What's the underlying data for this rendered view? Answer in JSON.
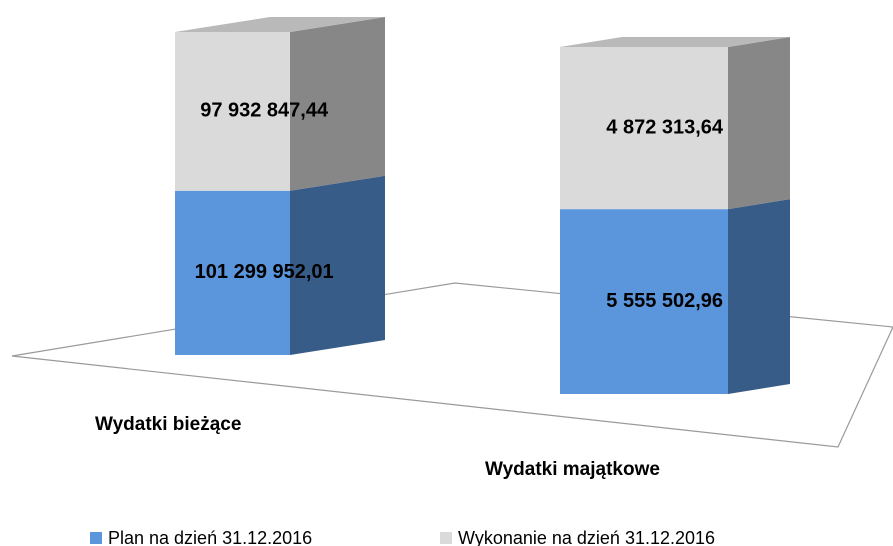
{
  "chart_data": {
    "type": "bar",
    "stacked": "percent",
    "categories": [
      "Wydatki bieżące",
      "Wydatki majątkowe"
    ],
    "series": [
      {
        "name": "Plan na dzień 31.12.2016",
        "color": "#5b95dc",
        "values": [
          101299952.01,
          5555502.96
        ],
        "value_labels": [
          "101 299 952,01",
          "5 555 502,96"
        ]
      },
      {
        "name": "Wykonanie na dzień 31.12.2016",
        "color": "#dadada",
        "values": [
          97932847.44,
          4872313.64
        ],
        "value_labels": [
          "97 932 847,44",
          "4 872 313,64"
        ]
      }
    ],
    "legend": "bottom"
  }
}
